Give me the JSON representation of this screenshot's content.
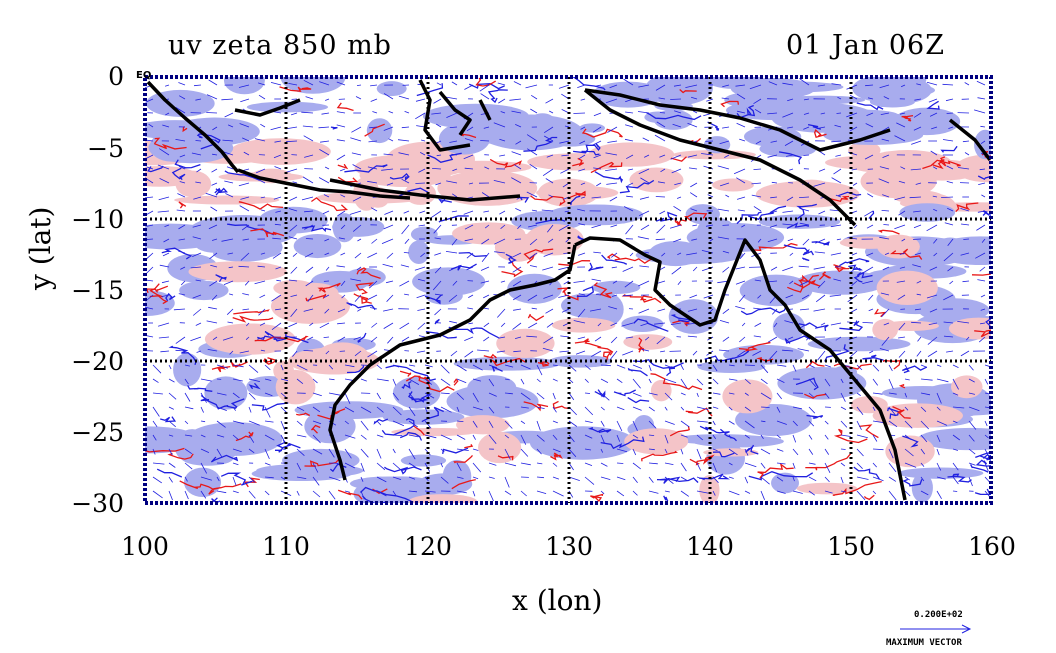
{
  "title_left": "uv zeta 850 mb",
  "title_right": "01 Jan 06Z",
  "xlabel": "x (lon)",
  "ylabel": "y (lat)",
  "eq_label": "EQ",
  "x_ticks": [
    "100",
    "110",
    "120",
    "130",
    "140",
    "150",
    "160"
  ],
  "y_ticks": [
    "0",
    "−5",
    "−10",
    "−15",
    "−20",
    "−25",
    "−30"
  ],
  "legend": {
    "vector_value": "0.200E+02",
    "vector_label": "MAXIMUM VECTOR"
  },
  "map_extent": {
    "lon": [
      100,
      160
    ],
    "lat": [
      -30,
      0
    ]
  },
  "gridlines_lon": [
    110,
    120,
    130,
    140,
    150
  ],
  "gridlines_lat": [
    -10,
    -20
  ],
  "colors": {
    "positive_shade": "#f4c4c8",
    "negative_shade": "#a8acee",
    "positive_contour": "#e81818",
    "negative_contour": "#2020e0",
    "vector": "#2020e0",
    "coastline": "#000000",
    "frame": "#000080"
  }
}
